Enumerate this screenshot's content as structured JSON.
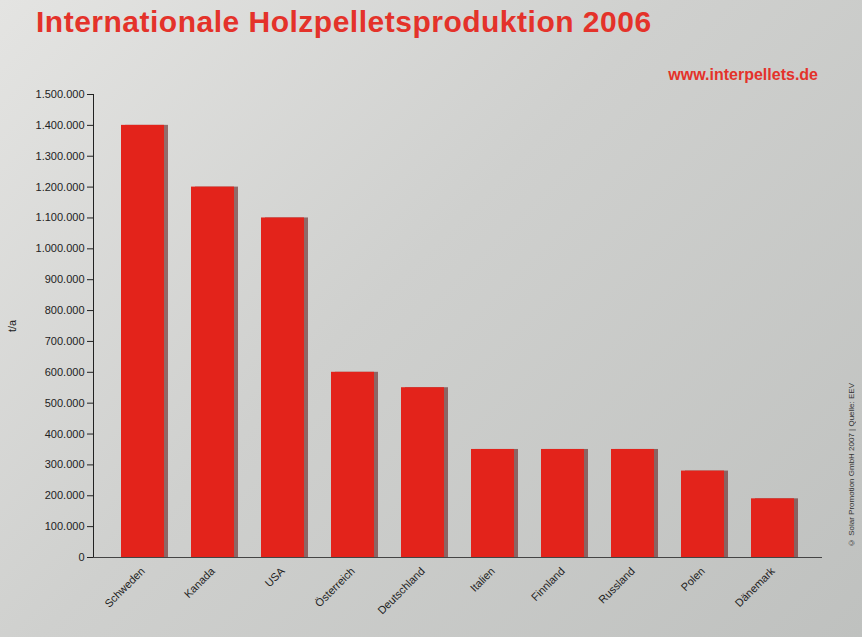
{
  "chart_data": {
    "type": "bar",
    "title": "Internationale Holzpelletsproduktion 2006",
    "subtitle": "www.interpellets.de",
    "annotations": [
      "© Solar Promotion GmbH 2007 | Quelle: EEV"
    ],
    "y_label": "t/a",
    "categories": [
      "Schweden",
      "Kanada",
      "USA",
      "Österreich",
      "Deutschland",
      "Italien",
      "Finnland",
      "Russland",
      "Polen",
      "Dänemark"
    ],
    "values": [
      1400000,
      1200000,
      1100000,
      600000,
      550000,
      350000,
      350000,
      350000,
      280000,
      190000
    ],
    "color": "#e3231b",
    "ylim": [
      0,
      1500000
    ],
    "yticks": [
      0,
      {
        "value": 100000,
        "label": "100.000"
      },
      {
        "value": 200000,
        "label": "200.000"
      },
      {
        "value": 300000,
        "label": "300.000"
      },
      {
        "value": 400000,
        "label": "400.000"
      },
      {
        "value": 500000,
        "label": "500.000"
      },
      {
        "value": 600000,
        "label": "600.000"
      },
      {
        "value": 700000,
        "label": "700.000"
      },
      {
        "value": 800000,
        "label": "800.000"
      },
      {
        "value": 900000,
        "label": "900.000"
      },
      {
        "value": 1000000,
        "label": "1.000.000"
      },
      {
        "value": 1100000,
        "label": "1.100.000"
      },
      {
        "value": 1200000,
        "label": "1.200.000"
      },
      {
        "value": 1300000,
        "label": "1.300.000"
      },
      {
        "value": 1400000,
        "label": "1.400.000"
      },
      {
        "value": 1500000,
        "label": "1.500.000"
      }
    ],
    "grid": false
  }
}
